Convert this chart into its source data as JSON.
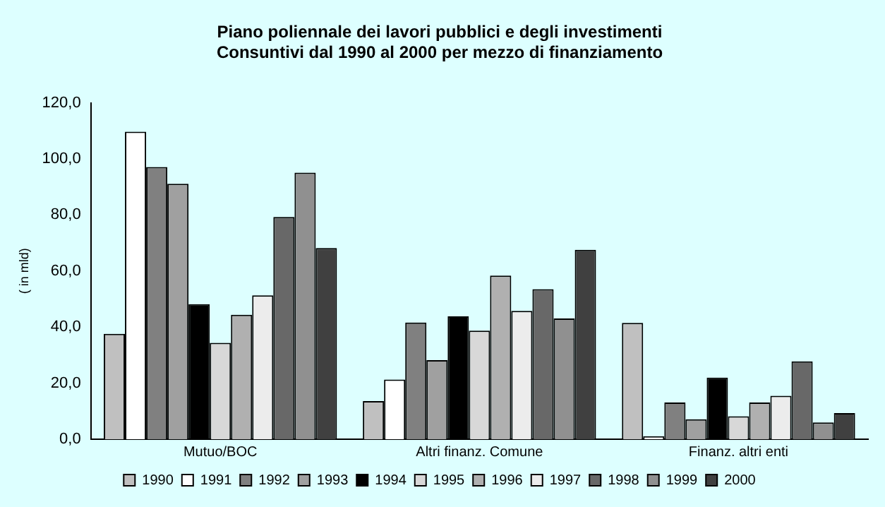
{
  "chart_data": {
    "type": "bar",
    "title": "Piano poliennale dei lavori pubblici e degli investimenti",
    "subtitle": "Consuntivi dal 1990 al 2000 per mezzo di finanziamento",
    "ylabel": "( in mld)",
    "categories": [
      "Mutuo/BOC",
      "Altri finanz. Comune",
      "Finanz. altri enti"
    ],
    "series": [
      {
        "name": "1990",
        "color": "#c0c0c0",
        "values": [
          37.6,
          13.6,
          41.5
        ]
      },
      {
        "name": "1991",
        "color": "#ffffff",
        "values": [
          109.7,
          21.3,
          1.1
        ]
      },
      {
        "name": "1992",
        "color": "#808080",
        "values": [
          97.1,
          41.6,
          13.1
        ]
      },
      {
        "name": "1993",
        "color": "#a0a0a0",
        "values": [
          91.1,
          28.2,
          7.1
        ]
      },
      {
        "name": "1994",
        "color": "#000000",
        "values": [
          48.2,
          43.8,
          22.0
        ]
      },
      {
        "name": "1995",
        "color": "#d8d8d8",
        "values": [
          34.4,
          38.7,
          8.2
        ]
      },
      {
        "name": "1996",
        "color": "#b0b0b0",
        "values": [
          44.4,
          58.4,
          13.1
        ]
      },
      {
        "name": "1997",
        "color": "#ececec",
        "values": [
          51.3,
          45.8,
          15.5
        ]
      },
      {
        "name": "1998",
        "color": "#686868",
        "values": [
          79.3,
          53.5,
          27.8
        ]
      },
      {
        "name": "1999",
        "color": "#909090",
        "values": [
          95.1,
          43.1,
          6.0
        ]
      },
      {
        "name": "2000",
        "color": "#404040",
        "values": [
          68.2,
          67.6,
          9.3
        ]
      }
    ],
    "ylim": [
      0,
      120
    ],
    "yticks": [
      {
        "value": 0,
        "label": "0,0"
      },
      {
        "value": 20,
        "label": "20,0"
      },
      {
        "value": 40,
        "label": "40,0"
      },
      {
        "value": 60,
        "label": "60,0"
      },
      {
        "value": 80,
        "label": "80,0"
      },
      {
        "value": 100,
        "label": "100,0"
      },
      {
        "value": 120,
        "label": "120,0"
      }
    ],
    "grid": false,
    "legend": "bottom"
  }
}
